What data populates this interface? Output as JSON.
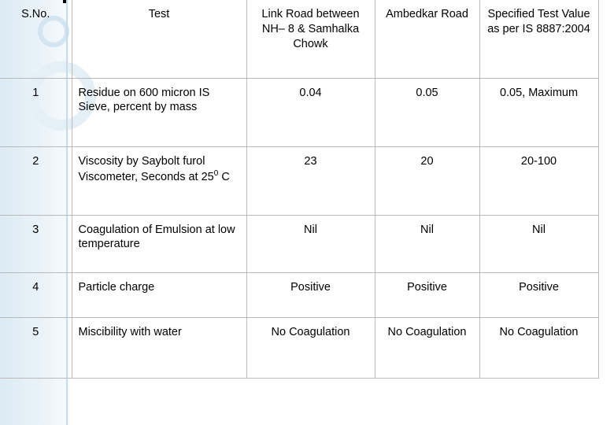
{
  "table": {
    "headers": [
      "S.No.",
      "Test",
      "Link Road between NH– 8 & Samhalka Chowk",
      "Ambedkar Road",
      "Specified Test Value as per IS 8887:2004"
    ],
    "rows": [
      [
        "1",
        "Residue on 600 micron IS Sieve, percent by mass",
        "0.04",
        "0.05",
        "0.05, Maximum"
      ],
      [
        "2",
        "Viscosity by Saybolt furol Viscometer, Seconds at 25",
        "23",
        "20",
        "20-100"
      ],
      [
        "3",
        "Coagulation of Emulsion at low temperature",
        "Nil",
        "Nil",
        "Nil"
      ],
      [
        "4",
        "Particle charge",
        "Positive",
        "Positive",
        "Positive"
      ],
      [
        "5",
        "Miscibility with water",
        "No Coagulation",
        "No Coagulation",
        "No Coagulation"
      ]
    ],
    "degree_sup": "0",
    "degree_unit": " C"
  }
}
